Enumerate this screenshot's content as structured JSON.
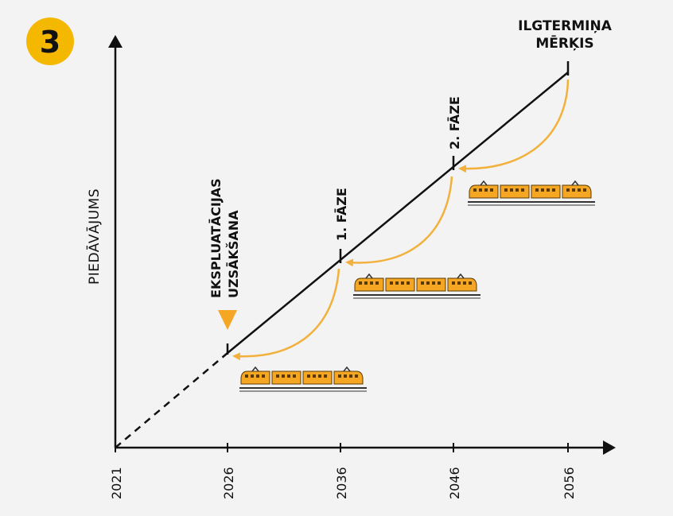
{
  "badge": {
    "number": "3",
    "color": "#f5b800"
  },
  "y_axis_label": "PIEDĀVĀJUMS",
  "x_ticks": [
    "2021",
    "2026",
    "2036",
    "2046",
    "2056"
  ],
  "milestones": {
    "start_line1": "EKSPLUATĀCIJAS",
    "start_line2": "UZSĀKŠANA",
    "phase1": "1. FĀZE",
    "phase2": "2. FĀZE",
    "goal_line1": "ILGTERMIŅA",
    "goal_line2": "MĒRĶIS"
  },
  "colors": {
    "accent": "#f5b800",
    "arrow": "#f2b13c",
    "train": "#f5a623",
    "line": "#111111"
  },
  "icons": [
    "train-icon",
    "marker-triangle-icon"
  ]
}
